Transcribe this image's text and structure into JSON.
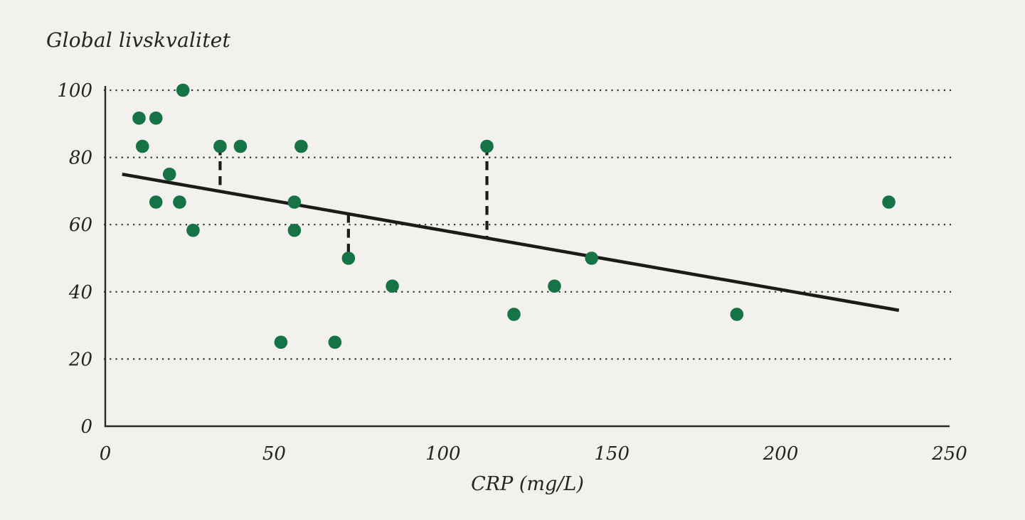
{
  "page": {
    "background_color": "#f2f1ed",
    "text_color": "#262421"
  },
  "chart_data": {
    "type": "scatter",
    "title": "Global livskvalitet",
    "xlabel": "CRP (mg/L)",
    "ylabel": "Global livskvalitet",
    "xlim": [
      0,
      250
    ],
    "ylim": [
      0,
      100
    ],
    "xticks": [
      0,
      50,
      100,
      150,
      200,
      250
    ],
    "yticks": [
      0,
      20,
      40,
      60,
      80,
      100
    ],
    "grid": "horizontal-dotted",
    "legend_position": "none",
    "point_color": "#157346",
    "line_color": "#1c1b19",
    "grid_color": "#32312e",
    "axis_color": "#2b2926",
    "points": [
      {
        "x": 23,
        "y": 100
      },
      {
        "x": 10,
        "y": 91.7
      },
      {
        "x": 15,
        "y": 91.7
      },
      {
        "x": 11,
        "y": 83.3
      },
      {
        "x": 34,
        "y": 83.3
      },
      {
        "x": 40,
        "y": 83.3
      },
      {
        "x": 58,
        "y": 83.3
      },
      {
        "x": 113,
        "y": 83.3
      },
      {
        "x": 19,
        "y": 75
      },
      {
        "x": 15,
        "y": 66.7
      },
      {
        "x": 22,
        "y": 66.7
      },
      {
        "x": 56,
        "y": 66.7
      },
      {
        "x": 232,
        "y": 66.7
      },
      {
        "x": 26,
        "y": 58.3
      },
      {
        "x": 56,
        "y": 58.3
      },
      {
        "x": 72,
        "y": 50
      },
      {
        "x": 144,
        "y": 50
      },
      {
        "x": 85,
        "y": 41.7
      },
      {
        "x": 133,
        "y": 41.7
      },
      {
        "x": 121,
        "y": 33.3
      },
      {
        "x": 187,
        "y": 33.3
      },
      {
        "x": 52,
        "y": 25
      },
      {
        "x": 68,
        "y": 25
      }
    ],
    "trendline": {
      "x1": 5,
      "y1": 75,
      "x2": 235,
      "y2": 34.5
    },
    "residual_lines": [
      {
        "x": 34,
        "y_from": 83.3,
        "y_to": 69.9
      },
      {
        "x": 72,
        "y_from": 63.2,
        "y_to": 50
      },
      {
        "x": 113,
        "y_from": 83.3,
        "y_to": 56
      }
    ]
  }
}
